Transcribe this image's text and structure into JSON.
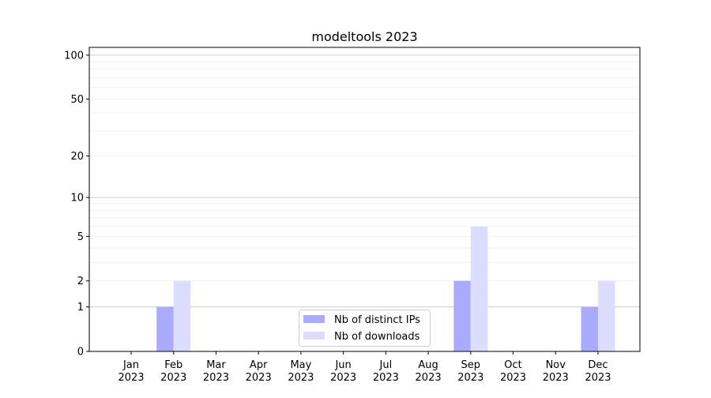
{
  "chart_data": {
    "type": "bar",
    "title": "modeltools 2023",
    "xlabel": "",
    "ylabel": "",
    "yscale": "log10(1+y)",
    "ylim": [
      0,
      113
    ],
    "yticks": [
      0,
      1,
      2,
      5,
      10,
      20,
      50,
      100
    ],
    "ytick_labels": [
      "0",
      "1",
      "2",
      "5",
      "10",
      "20",
      "50",
      "100"
    ],
    "grid": true,
    "legend_position": "bottom-center",
    "categories": [
      [
        "Jan",
        "2023"
      ],
      [
        "Feb",
        "2023"
      ],
      [
        "Mar",
        "2023"
      ],
      [
        "Apr",
        "2023"
      ],
      [
        "May",
        "2023"
      ],
      [
        "Jun",
        "2023"
      ],
      [
        "Jul",
        "2023"
      ],
      [
        "Aug",
        "2023"
      ],
      [
        "Sep",
        "2023"
      ],
      [
        "Oct",
        "2023"
      ],
      [
        "Nov",
        "2023"
      ],
      [
        "Dec",
        "2023"
      ]
    ],
    "series": [
      {
        "name": "Nb of distinct IPs",
        "color": "#aaaaff",
        "values": [
          0,
          1,
          0,
          0,
          0,
          0,
          0,
          0,
          2,
          0,
          0,
          1
        ]
      },
      {
        "name": "Nb of downloads",
        "color": "#ddddff",
        "values": [
          0,
          2,
          0,
          0,
          0,
          0,
          0,
          0,
          6,
          0,
          0,
          2
        ]
      }
    ]
  }
}
